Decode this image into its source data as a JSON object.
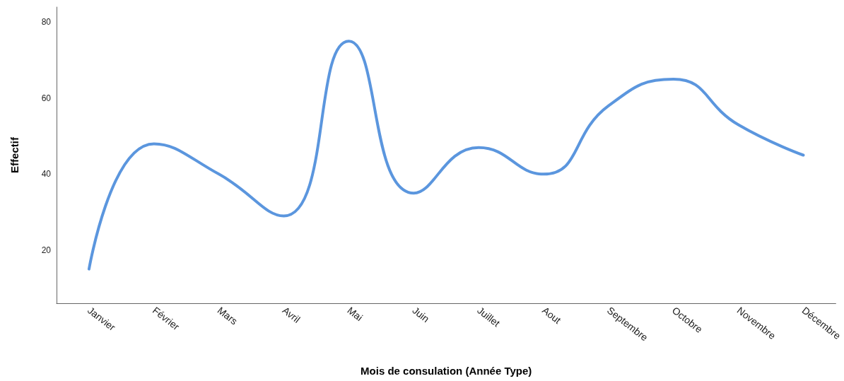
{
  "chart_data": {
    "type": "line",
    "xlabel": "Mois de consulation (Année Type)",
    "ylabel": "Effectif",
    "categories": [
      "Janvier",
      "Février",
      "Mars",
      "Avril",
      "Mai",
      "Juin",
      "Juillet",
      "Aout",
      "Septembre",
      "Octobre",
      "Novembre",
      "Décembre"
    ],
    "series": [
      {
        "color": "#5b96de",
        "values": [
          15,
          48,
          40,
          29,
          75,
          35,
          47,
          40,
          58,
          65,
          53,
          45
        ]
      }
    ],
    "ylim": [
      6,
      84
    ],
    "yticks": [
      20,
      40,
      60,
      80
    ],
    "grid": false,
    "marker": "none",
    "line_style": "solid"
  }
}
